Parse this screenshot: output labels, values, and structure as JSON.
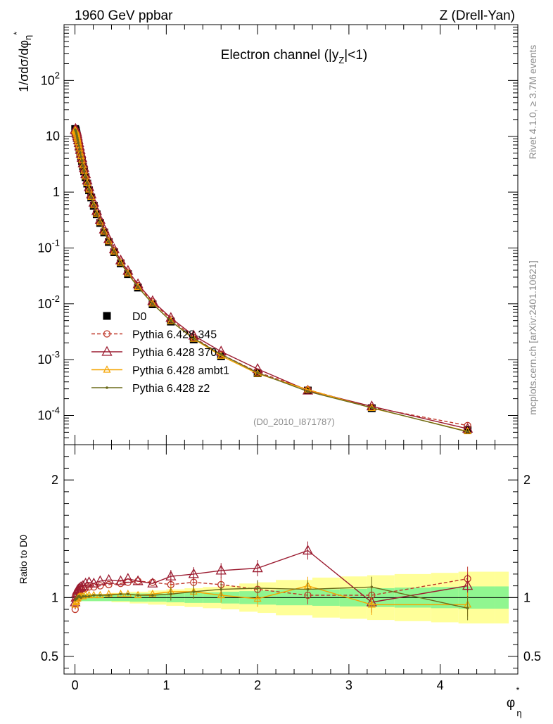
{
  "header": {
    "left": "1960 GeV ppbar",
    "right": "Z (Drell-Yan)",
    "channel": "Electron channel (|y_Z|<1)",
    "side_top": "Rivet 4.1.0, ≥ 3.7M events",
    "side_bottom": "mcplots.cern.ch [arXiv:2401.10621]",
    "analysis_id": "(D0_2010_I871787)"
  },
  "colors": {
    "data": "#000000",
    "p345": "#c0392b",
    "p370": "#9b1b30",
    "ambt1": "#f5a400",
    "z2": "#6b6b1a",
    "band_inner": "#90f690",
    "band_outer": "#ffff99"
  },
  "chart_data": [
    {
      "type": "line",
      "title": "Electron channel (|yZ|<1)",
      "ylabel": "1/σdσ/dφ*η",
      "xlabel": "",
      "yscale": "log",
      "xlim": [
        -0.12,
        4.85
      ],
      "ylim": [
        3e-05,
        1000
      ],
      "y_ticks": [
        "10^-4",
        "10^-3",
        "10^-2",
        "10^-1",
        "1",
        "10",
        "10^2"
      ],
      "x": [
        0.002,
        0.006,
        0.01,
        0.014,
        0.018,
        0.022,
        0.026,
        0.03,
        0.036,
        0.043,
        0.05,
        0.058,
        0.066,
        0.076,
        0.088,
        0.1,
        0.116,
        0.134,
        0.154,
        0.178,
        0.206,
        0.238,
        0.276,
        0.32,
        0.37,
        0.43,
        0.5,
        0.58,
        0.69,
        0.85,
        1.05,
        1.3,
        1.6,
        2.0,
        2.55,
        3.25,
        4.3
      ],
      "series": [
        {
          "name": "D0",
          "style": "data",
          "values": [
            13.5,
            13.0,
            12.4,
            11.6,
            10.8,
            10.0,
            9.2,
            8.5,
            7.6,
            6.7,
            5.8,
            5.0,
            4.3,
            3.6,
            2.9,
            2.35,
            1.85,
            1.42,
            1.08,
            0.8,
            0.57,
            0.4,
            0.28,
            0.19,
            0.128,
            0.084,
            0.053,
            0.034,
            0.0195,
            0.0098,
            0.0048,
            0.0023,
            0.00115,
            0.00057,
            0.00028,
            0.000135,
            5.5e-05
          ]
        },
        {
          "name": "Pythia 6.428 345",
          "style": "dashed-circle",
          "values": [
            12.2,
            12.6,
            12.5,
            11.9,
            11.3,
            10.5,
            9.7,
            9.0,
            8.1,
            7.2,
            6.3,
            5.4,
            4.6,
            3.9,
            3.15,
            2.55,
            2.0,
            1.53,
            1.16,
            0.86,
            0.62,
            0.435,
            0.3,
            0.205,
            0.138,
            0.091,
            0.058,
            0.037,
            0.0212,
            0.0108,
            0.0053,
            0.0025,
            0.00125,
            0.0006,
            0.00029,
            0.00014,
            6.6e-05
          ]
        },
        {
          "name": "Pythia 6.428 370",
          "style": "solid-triangle",
          "values": [
            13.0,
            13.6,
            13.2,
            12.6,
            11.9,
            11.1,
            10.2,
            9.5,
            8.5,
            7.6,
            6.6,
            5.7,
            4.9,
            4.1,
            3.3,
            2.7,
            2.1,
            1.62,
            1.23,
            0.91,
            0.65,
            0.46,
            0.32,
            0.215,
            0.145,
            0.095,
            0.06,
            0.039,
            0.0225,
            0.0112,
            0.0056,
            0.0027,
            0.0014,
            0.00068,
            0.00028,
            0.000146,
            5.8e-05
          ]
        },
        {
          "name": "Pythia 6.428 ambt1",
          "style": "solid-small-triangle",
          "values": [
            12.9,
            12.7,
            12.3,
            11.7,
            11.0,
            10.2,
            9.4,
            8.7,
            7.8,
            6.9,
            6.0,
            5.1,
            4.4,
            3.7,
            3.0,
            2.42,
            1.9,
            1.46,
            1.11,
            0.82,
            0.585,
            0.41,
            0.287,
            0.195,
            0.131,
            0.086,
            0.054,
            0.035,
            0.02,
            0.0101,
            0.0049,
            0.00235,
            0.00117,
            0.00056,
            0.00029,
            0.000136,
            5.2e-05
          ]
        },
        {
          "name": "Pythia 6.428 z2",
          "style": "solid-dot",
          "values": [
            13.2,
            12.8,
            12.3,
            11.6,
            10.9,
            10.1,
            9.3,
            8.6,
            7.7,
            6.8,
            5.9,
            5.1,
            4.35,
            3.65,
            2.95,
            2.38,
            1.88,
            1.44,
            1.1,
            0.81,
            0.58,
            0.405,
            0.285,
            0.193,
            0.13,
            0.085,
            0.054,
            0.0345,
            0.0198,
            0.01,
            0.0049,
            0.0024,
            0.00124,
            0.00058,
            0.00027,
            0.000138,
            5.1e-05
          ]
        }
      ]
    },
    {
      "type": "line",
      "title": "",
      "ylabel": "Ratio to D0",
      "xlabel": "φ*η",
      "xlim": [
        -0.12,
        4.85
      ],
      "ylim": [
        0.35,
        2.3
      ],
      "y_ticks": [
        "0.5",
        "1",
        "2"
      ],
      "x_ticks": [
        "0",
        "1",
        "2",
        "3",
        "4"
      ],
      "band_edges": [
        0.0,
        0.4,
        0.6,
        0.8,
        1.0,
        1.2,
        1.4,
        1.6,
        1.8,
        2.0,
        2.2,
        2.6,
        2.9,
        3.2,
        3.5,
        3.9,
        4.2,
        4.6,
        4.75
      ],
      "band_inner": [
        0.03,
        0.03,
        0.035,
        0.035,
        0.04,
        0.045,
        0.045,
        0.05,
        0.055,
        0.06,
        0.065,
        0.07,
        0.075,
        0.08,
        0.085,
        0.09,
        0.095,
        0.095
      ],
      "band_outer": [
        0.03,
        0.04,
        0.05,
        0.06,
        0.07,
        0.08,
        0.09,
        0.1,
        0.12,
        0.13,
        0.15,
        0.17,
        0.18,
        0.19,
        0.2,
        0.21,
        0.22,
        0.22
      ],
      "x": [
        0.002,
        0.01,
        0.018,
        0.026,
        0.036,
        0.05,
        0.066,
        0.088,
        0.116,
        0.154,
        0.206,
        0.276,
        0.37,
        0.5,
        0.58,
        0.69,
        0.85,
        1.05,
        1.3,
        1.6,
        2.0,
        2.55,
        3.25,
        4.3
      ],
      "series": [
        {
          "name": "Pythia 6.428 345",
          "style": "dashed-circle",
          "values": [
            0.9,
            0.97,
            1.02,
            1.05,
            1.06,
            1.07,
            1.07,
            1.08,
            1.08,
            1.09,
            1.09,
            1.1,
            1.11,
            1.12,
            1.13,
            1.14,
            1.13,
            1.11,
            1.13,
            1.11,
            1.07,
            1.02,
            1.02,
            1.16
          ]
        },
        {
          "name": "Pythia 6.428 370",
          "style": "solid-triangle",
          "values": [
            0.96,
            1.0,
            1.04,
            1.06,
            1.07,
            1.08,
            1.09,
            1.1,
            1.12,
            1.13,
            1.12,
            1.14,
            1.15,
            1.14,
            1.16,
            1.14,
            1.12,
            1.18,
            1.2,
            1.23,
            1.25,
            1.4,
            0.96,
            1.1
          ]
        },
        {
          "name": "Pythia 6.428 ambt1",
          "style": "solid-small-triangle",
          "values": [
            0.94,
            0.96,
            0.97,
            0.99,
            1.0,
            1.01,
            1.01,
            1.01,
            1.02,
            1.02,
            1.02,
            1.02,
            1.03,
            1.03,
            1.03,
            1.02,
            1.03,
            1.05,
            1.05,
            1.02,
            0.99,
            1.1,
            0.94,
            0.94
          ]
        },
        {
          "name": "Pythia 6.428 z2",
          "style": "solid-dot",
          "values": [
            0.98,
            0.99,
            0.99,
            1.0,
            1.01,
            1.01,
            1.0,
            1.01,
            1.01,
            1.01,
            1.02,
            1.02,
            1.02,
            1.03,
            1.03,
            1.02,
            1.02,
            1.03,
            1.05,
            1.07,
            1.08,
            1.07,
            1.09,
            0.91
          ]
        }
      ]
    }
  ]
}
